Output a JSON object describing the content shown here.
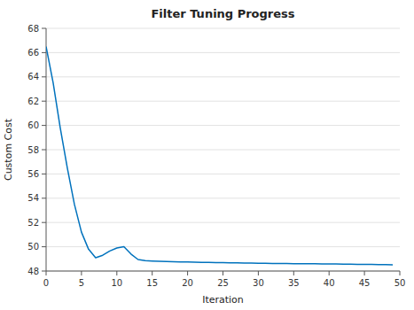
{
  "chart_data": {
    "type": "line",
    "title": "Filter Tuning Progress",
    "xlabel": "Iteration",
    "ylabel": "Custom Cost",
    "color": "#0072BD",
    "xlim": [
      0,
      50
    ],
    "ylim": [
      48,
      68
    ],
    "xticks": [
      0,
      5,
      10,
      15,
      20,
      25,
      30,
      35,
      40,
      45,
      50
    ],
    "yticks": [
      48,
      50,
      52,
      54,
      56,
      58,
      60,
      62,
      64,
      66,
      68
    ],
    "grid": true,
    "x": [
      0,
      1,
      2,
      3,
      4,
      5,
      6,
      7,
      8,
      9,
      10,
      11,
      12,
      13,
      14,
      15,
      16,
      17,
      18,
      19,
      20,
      21,
      22,
      23,
      24,
      25,
      26,
      27,
      28,
      29,
      30,
      31,
      32,
      33,
      34,
      35,
      36,
      37,
      38,
      39,
      40,
      41,
      42,
      43,
      44,
      45,
      46,
      47,
      48,
      49
    ],
    "values": [
      66.5,
      63.5,
      59.8,
      56.5,
      53.5,
      51.2,
      49.8,
      49.1,
      49.3,
      49.65,
      49.9,
      50.0,
      49.4,
      48.95,
      48.85,
      48.82,
      48.8,
      48.78,
      48.77,
      48.75,
      48.74,
      48.73,
      48.72,
      48.71,
      48.7,
      48.69,
      48.68,
      48.67,
      48.66,
      48.65,
      48.64,
      48.63,
      48.62,
      48.62,
      48.62,
      48.61,
      48.61,
      48.6,
      48.6,
      48.59,
      48.59,
      48.58,
      48.57,
      48.56,
      48.55,
      48.54,
      48.54,
      48.53,
      48.53,
      48.52
    ]
  }
}
